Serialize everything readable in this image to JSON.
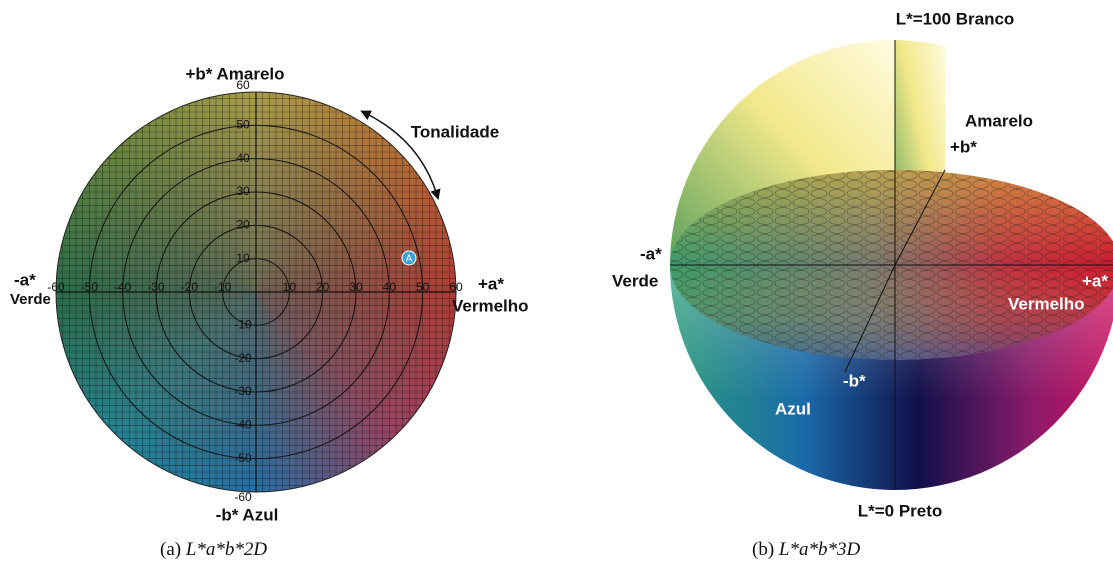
{
  "panel_a": {
    "top_label": "+b* Amarelo",
    "bottom_label": "-b* Azul",
    "left_sign": "-a*",
    "left_name": "Verde",
    "right_sign": "+a*",
    "right_name": "Vermelho",
    "hue_label": "Tonalidade",
    "point_label": "A",
    "x_ticks": [
      -60,
      -50,
      -40,
      -30,
      -20,
      -10,
      10,
      20,
      30,
      40,
      50,
      60
    ],
    "y_ticks": [
      60,
      50,
      40,
      30,
      20,
      10,
      -10,
      -20,
      -30,
      -40,
      -50,
      -60
    ],
    "caption_tag": "(a)",
    "caption_math": "L*a*b*2D"
  },
  "panel_b": {
    "top_label": "L*=100 Branco",
    "bottom_label": "L*=0 Preto",
    "yellow_name": "Amarelo",
    "yellow_sign": "+b*",
    "left_sign": "-a*",
    "left_name": "Verde",
    "right_sign": "+a*",
    "right_name": "Vermelho",
    "blue_sign": "-b*",
    "blue_name": "Azul",
    "caption_tag": "(b)",
    "caption_math": "L*a*b*3D"
  }
}
